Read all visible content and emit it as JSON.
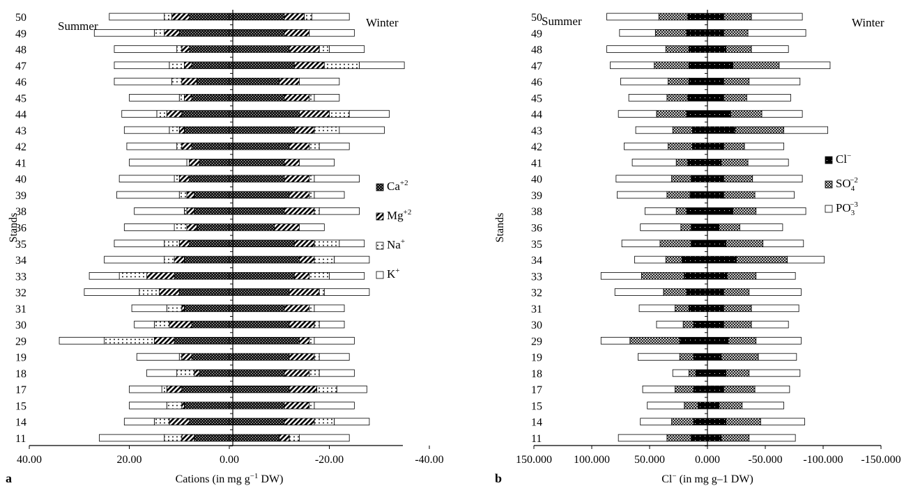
{
  "colors": {
    "ink": "#000000",
    "paper": "#ffffff"
  },
  "patterns": {
    "Ca": "dark-crosshatch-dots",
    "Mg": "diagonal-hatch",
    "Na": "dotted",
    "K": "blank",
    "Cl": "solid-black-dots",
    "SO4": "crosshatch",
    "PO3": "blank"
  },
  "chart_data": [
    {
      "panel_label": "a",
      "type": "bar",
      "orientation": "horizontal",
      "stacked": true,
      "sides": [
        "Summer",
        "Winter"
      ],
      "categories": [
        "11",
        "14",
        "15",
        "17",
        "18",
        "19",
        "29",
        "30",
        "31",
        "32",
        "33",
        "34",
        "35",
        "36",
        "38",
        "39",
        "40",
        "41",
        "42",
        "43",
        "44",
        "45",
        "46",
        "47",
        "48",
        "49",
        "50"
      ],
      "xlim": [
        40,
        -40
      ],
      "xticks": [
        "40.00",
        "20.00",
        "0.00",
        "-20.00",
        "-40.00"
      ],
      "xticks_values": [
        40,
        20,
        0,
        -20,
        -40
      ],
      "xlabel_main": "Cations (in mg g",
      "xlabel_sup": "−1",
      "xlabel_tail": " DW)",
      "ylabel": "Stands",
      "grid": false,
      "legend_position": "right",
      "legend": [
        {
          "key": "Ca",
          "base": "Ca",
          "sup": "+2",
          "sub": ""
        },
        {
          "key": "Mg",
          "base": "Mg",
          "sup": "+2",
          "sub": ""
        },
        {
          "key": "Na",
          "base": "Na",
          "sup": "+",
          "sub": ""
        },
        {
          "key": "K",
          "base": "K",
          "sup": "+",
          "sub": ""
        }
      ],
      "series": [
        {
          "name": "Ca+2",
          "key": "Ca",
          "summer": [
            7,
            8,
            9,
            9.5,
            6,
            7.5,
            11,
            7.5,
            9,
            10,
            11,
            9,
            8,
            6.5,
            7,
            7,
            8,
            6,
            7.5,
            9,
            9.5,
            7.5,
            6.5,
            7.5,
            8,
            10,
            8
          ],
          "winter": [
            10,
            11,
            11,
            12,
            11,
            12,
            14,
            12,
            11,
            12,
            13,
            14,
            13,
            9,
            11,
            12,
            11,
            11,
            12,
            13,
            14,
            11,
            10,
            13,
            12,
            11,
            11
          ]
        },
        {
          "name": "Mg+2",
          "key": "Mg",
          "summer": [
            2.5,
            4,
            0.5,
            3,
            1,
            2,
            4,
            4.5,
            0.5,
            4,
            5.5,
            2,
            2,
            2,
            1.5,
            1.5,
            2,
            2,
            2,
            1,
            3,
            1.5,
            3,
            1.5,
            1.5,
            3,
            3.5
          ],
          "winter": [
            2,
            6,
            5,
            5.5,
            5,
            5,
            2,
            5,
            5,
            6,
            3,
            3,
            4,
            5,
            6,
            4,
            5,
            3,
            4,
            4,
            6,
            5,
            4,
            6,
            6,
            5,
            4
          ]
        },
        {
          "name": "Na+",
          "key": "Na",
          "summer": [
            3.5,
            3,
            3,
            1,
            3.5,
            0.5,
            10,
            3,
            3,
            4,
            5.5,
            2,
            3,
            2.5,
            0.5,
            1.5,
            1,
            0.5,
            1,
            2,
            2,
            1,
            2,
            3,
            1,
            2,
            1.5
          ],
          "winter": [
            2,
            4,
            1,
            4,
            2,
            1,
            1,
            1,
            1,
            1,
            4,
            4,
            5,
            0,
            1,
            1,
            1,
            0,
            2,
            5,
            4,
            1,
            0,
            7,
            2,
            0,
            1.5
          ]
        },
        {
          "name": "K+",
          "key": "K",
          "summer": [
            13,
            6,
            7.5,
            6.5,
            6,
            8.5,
            9,
            4,
            7,
            11,
            6,
            12,
            10,
            10,
            10,
            12.5,
            11,
            11.5,
            10,
            9,
            7,
            10,
            11.5,
            11,
            12.5,
            12,
            11
          ],
          "winter": [
            10,
            7,
            8,
            6,
            7,
            6,
            8,
            5,
            6,
            9,
            7,
            7,
            5,
            5,
            8,
            6,
            9,
            7,
            6,
            9,
            8,
            5,
            8,
            9,
            7,
            9,
            7.5
          ]
        }
      ]
    },
    {
      "panel_label": "b",
      "type": "bar",
      "orientation": "horizontal",
      "stacked": true,
      "sides": [
        "Summer",
        "Winter"
      ],
      "categories": [
        "11",
        "14",
        "15",
        "17",
        "18",
        "19",
        "29",
        "30",
        "31",
        "32",
        "33",
        "34",
        "35",
        "36",
        "38",
        "39",
        "40",
        "41",
        "42",
        "43",
        "44",
        "45",
        "46",
        "47",
        "48",
        "49",
        "50"
      ],
      "xlim": [
        150,
        -150
      ],
      "xticks": [
        "150.000",
        "100.000",
        "50.000",
        "0.000",
        "-50.000",
        "-100.000",
        "-150.000"
      ],
      "xticks_values": [
        150,
        100,
        50,
        0,
        -50,
        -100,
        -150
      ],
      "xlabel_main": "Cl",
      "xlabel_sup": "−",
      "xlabel_tail": "  (in mg g–1 DW)",
      "ylabel": "Stands",
      "grid": false,
      "legend_position": "right",
      "legend": [
        {
          "key": "Cl",
          "base": "Cl",
          "sup": "−",
          "sub": ""
        },
        {
          "key": "SO4",
          "base": "SO",
          "sup": "−2",
          "sub": "4"
        },
        {
          "key": "PO3",
          "base": "PO",
          "sup": "−3",
          "sub": "3"
        }
      ],
      "series": [
        {
          "name": "Cl−",
          "key": "Cl",
          "summer": [
            14,
            12,
            8,
            12,
            10,
            12,
            24,
            12,
            16,
            18,
            20,
            22,
            14,
            14,
            18,
            15,
            14,
            17,
            13,
            13,
            18,
            17,
            16,
            16,
            16,
            18,
            17
          ],
          "winter": [
            12,
            16,
            10,
            14,
            16,
            12,
            18,
            14,
            14,
            14,
            17,
            25,
            16,
            10,
            22,
            14,
            14,
            12,
            14,
            24,
            20,
            14,
            14,
            22,
            16,
            14,
            14
          ]
        },
        {
          "name": "SO4−2",
          "key": "SO4",
          "summer": [
            21,
            19,
            12,
            16,
            6,
            12,
            43,
            9,
            12,
            20,
            37,
            14,
            27,
            9,
            9,
            20,
            17,
            10,
            21,
            17,
            26,
            18,
            18,
            30,
            20,
            27,
            25
          ],
          "winter": [
            24,
            30,
            20,
            27,
            20,
            32,
            24,
            24,
            24,
            22,
            25,
            44,
            32,
            18,
            20,
            27,
            25,
            23,
            18,
            42,
            27,
            20,
            22,
            40,
            22,
            21,
            24
          ]
        },
        {
          "name": "PO3−3",
          "key": "PO3",
          "summer": [
            42,
            27,
            32,
            28,
            14,
            36,
            25,
            23,
            31,
            42,
            35,
            27,
            33,
            35,
            27,
            43,
            48,
            38,
            38,
            32,
            33,
            33,
            41,
            38,
            51,
            31,
            45
          ],
          "winter": [
            40,
            38,
            36,
            30,
            44,
            33,
            39,
            32,
            41,
            45,
            34,
            32,
            35,
            37,
            43,
            34,
            43,
            35,
            34,
            38,
            35,
            38,
            44,
            44,
            32,
            50,
            44
          ]
        }
      ]
    }
  ]
}
